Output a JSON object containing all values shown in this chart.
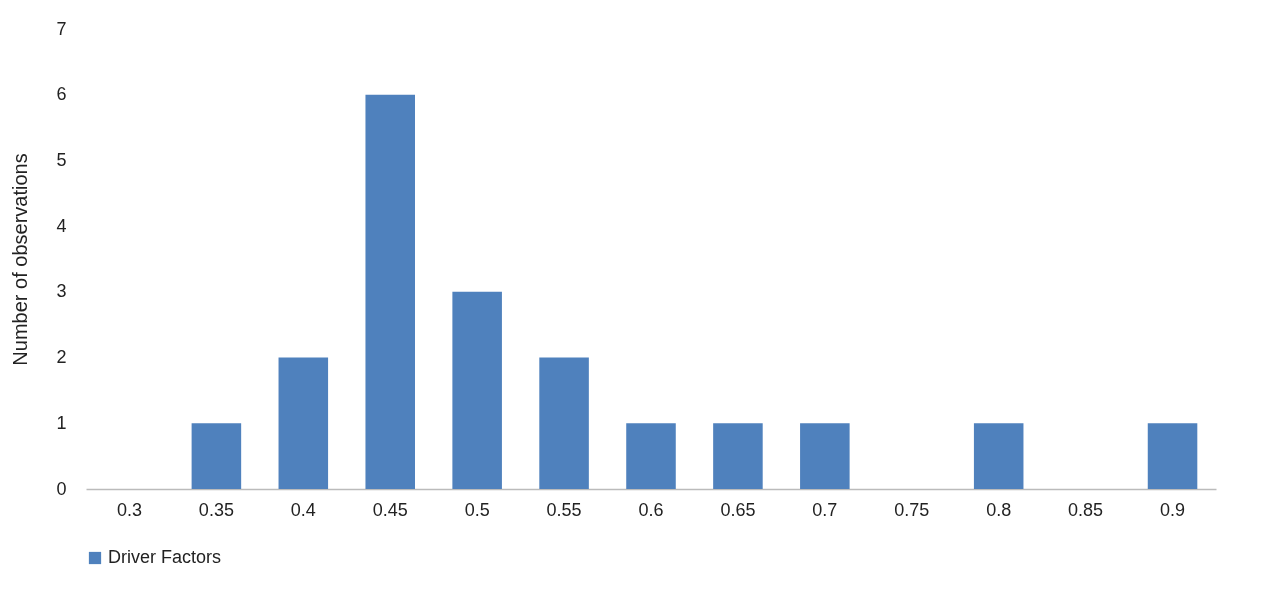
{
  "chart_data": {
    "type": "bar",
    "ylabel": "Number of observations",
    "categories": [
      "0.3",
      "0.35",
      "0.4",
      "0.45",
      "0.5",
      "0.55",
      "0.6",
      "0.65",
      "0.7",
      "0.75",
      "0.8",
      "0.85",
      "0.9"
    ],
    "series": [
      {
        "name": "Driver Factors",
        "color": "#4f81bd",
        "values": [
          0,
          1,
          2,
          6,
          3,
          2,
          1,
          1,
          1,
          0,
          1,
          0,
          1
        ]
      }
    ],
    "ylim": [
      0,
      7
    ],
    "yticks": [
      0,
      1,
      2,
      3,
      4,
      5,
      6,
      7
    ],
    "grid": false,
    "legend": "bottom"
  }
}
